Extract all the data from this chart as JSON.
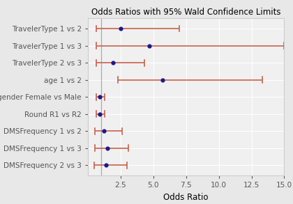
{
  "title": "Odds Ratios with 95% Wald Confidence Limits",
  "xlabel": "Odds Ratio",
  "categories": [
    "TravelerType 1 vs 2",
    "TravelerType 1 vs 3",
    "TravelerType 2 vs 3",
    "age 1 vs 2",
    "gender Female vs Male",
    "Round R1 vs R2",
    "DMSFrequency 1 vs 2",
    "DMSFrequency 1 vs 3",
    "DMSFrequency 2 vs 3"
  ],
  "point_estimates": [
    2.5,
    4.7,
    1.9,
    5.7,
    0.9,
    0.9,
    1.2,
    1.5,
    1.4
  ],
  "lower_ci": [
    0.65,
    0.65,
    0.65,
    2.3,
    0.65,
    0.65,
    0.55,
    0.55,
    0.5
  ],
  "upper_ci": [
    7.0,
    15.0,
    4.3,
    13.3,
    1.3,
    1.3,
    2.6,
    3.1,
    3.0
  ],
  "xlim": [
    0.0,
    15.0
  ],
  "xticks": [
    2.5,
    5.0,
    7.5,
    10.0,
    12.5,
    15.0
  ],
  "xtick_labels": [
    "2.5",
    "5.0",
    "7.5",
    "10.0",
    "12.5",
    "15.0"
  ],
  "point_color": "#1a1a8c",
  "line_color": "#c8604a",
  "plot_bg_color": "#f0f0f0",
  "fig_bg_color": "#e8e8e8",
  "grid_color": "#ffffff",
  "ref_line_x": 1.0,
  "ref_line_color": "#aaaaaa",
  "title_fontsize": 8.5,
  "label_fontsize": 7.5,
  "tick_fontsize": 7.5,
  "xlabel_fontsize": 8.5
}
